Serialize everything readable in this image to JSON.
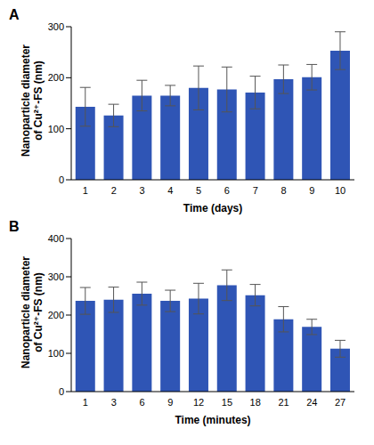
{
  "chart_data": [
    {
      "type": "bar",
      "title": "A",
      "x_label": "Time (days)",
      "y_label": "Nanoparticle diameter of Cu²⁺-FS (nm)",
      "categories": [
        1,
        2,
        3,
        4,
        5,
        6,
        7,
        8,
        9,
        10
      ],
      "values": [
        143,
        126,
        165,
        165,
        180,
        177,
        171,
        197,
        201,
        253
      ],
      "errors": [
        38,
        22,
        30,
        20,
        43,
        44,
        32,
        28,
        25,
        37
      ],
      "color": "#2f55b5",
      "ylim": [
        0,
        300
      ],
      "yticks": [
        0,
        100,
        200,
        300
      ],
      "grid": false
    },
    {
      "type": "bar",
      "title": "B",
      "x_label": "Time (minutes)",
      "y_label": "Nanoparticle diameter of Cu²⁺-FS (nm)",
      "categories": [
        1,
        3,
        6,
        9,
        12,
        15,
        18,
        21,
        24,
        27
      ],
      "values": [
        237,
        240,
        256,
        237,
        243,
        278,
        252,
        189,
        169,
        112
      ],
      "errors": [
        35,
        33,
        30,
        28,
        40,
        40,
        28,
        33,
        20,
        22
      ],
      "color": "#2f55b5",
      "ylim": [
        0,
        400
      ],
      "yticks": [
        0,
        100,
        200,
        300,
        400
      ],
      "grid": false
    }
  ]
}
